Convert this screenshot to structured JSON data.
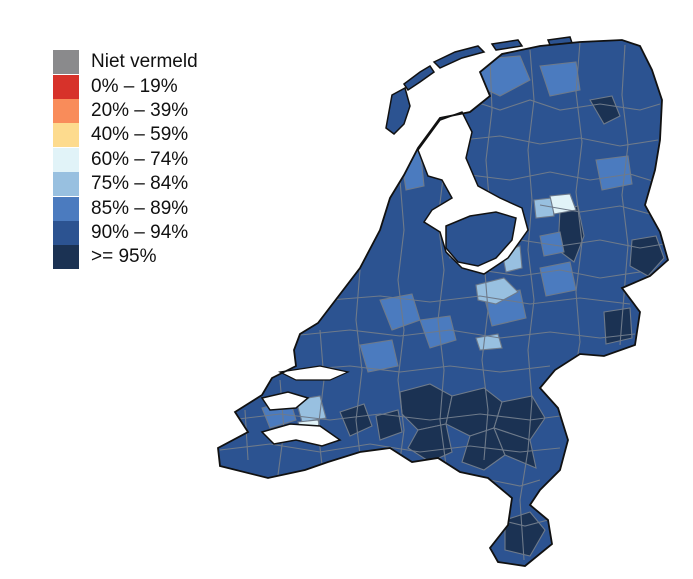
{
  "legend": {
    "items": [
      {
        "label": "Niet vermeld",
        "color": "#8a8a8c"
      },
      {
        "label": "0% – 19%",
        "color": "#d7322a"
      },
      {
        "label": "20% – 39%",
        "color": "#f98c5a"
      },
      {
        "label": "40% – 59%",
        "color": "#fddb8e"
      },
      {
        "label": "60% – 74%",
        "color": "#e1f3f8"
      },
      {
        "label": "75% – 84%",
        "color": "#98c0e0"
      },
      {
        "label": "85% – 89%",
        "color": "#4b7bbf"
      },
      {
        "label": "90% – 94%",
        "color": "#2c5391"
      },
      {
        "label": ">= 95%",
        "color": "#1b3253"
      }
    ]
  },
  "map": {
    "border_color": "#6e7a8a",
    "outline_color": "#111111"
  }
}
